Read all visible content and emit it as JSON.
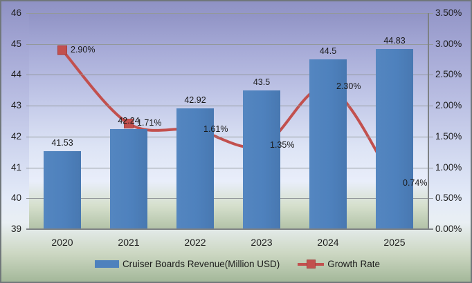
{
  "chart_data": {
    "type": "bar",
    "subtype": "combo-bar-line",
    "categories": [
      "2020",
      "2021",
      "2022",
      "2023",
      "2024",
      "2025"
    ],
    "series": [
      {
        "name": "Cruiser Boards Revenue(Million USD)",
        "type": "bar",
        "axis": "left",
        "values": [
          41.53,
          42.24,
          42.92,
          43.5,
          44.5,
          44.83
        ],
        "data_labels": [
          "41.53",
          "42.24",
          "42.92",
          "43.5",
          "44.5",
          "44.83"
        ],
        "color": "#4E81BD"
      },
      {
        "name": "Growth Rate",
        "type": "line",
        "axis": "right",
        "values": [
          2.9,
          1.71,
          1.61,
          1.35,
          2.3,
          0.74
        ],
        "data_labels": [
          "2.90%",
          "1.71%",
          "1.61%",
          "1.35%",
          "2.30%",
          "0.74%"
        ],
        "color": "#C2504E"
      }
    ],
    "left_axis": {
      "min": 39,
      "max": 46,
      "step": 1,
      "ticks": [
        "46",
        "45",
        "44",
        "43",
        "42",
        "41",
        "40",
        "39"
      ]
    },
    "right_axis": {
      "min": 0,
      "max": 3.5,
      "step": 0.5,
      "ticks": [
        "3.50%",
        "3.00%",
        "2.50%",
        "2.00%",
        "1.50%",
        "1.00%",
        "0.50%",
        "0.00%"
      ]
    },
    "grid": true,
    "legend_position": "bottom",
    "colors": {
      "bar": "#4E81BD",
      "line": "#C2504E",
      "gridline": "#93989B",
      "axis": "#7D8184",
      "text": "#1C1C1C",
      "bg_top": "#8F92C4",
      "bg_mid": "#E3EAF8",
      "bg_bottom": "#A4B89A"
    }
  },
  "legend": {
    "revenue_label": "Cruiser Boards Revenue(Million USD)",
    "growth_label": "Growth Rate"
  }
}
